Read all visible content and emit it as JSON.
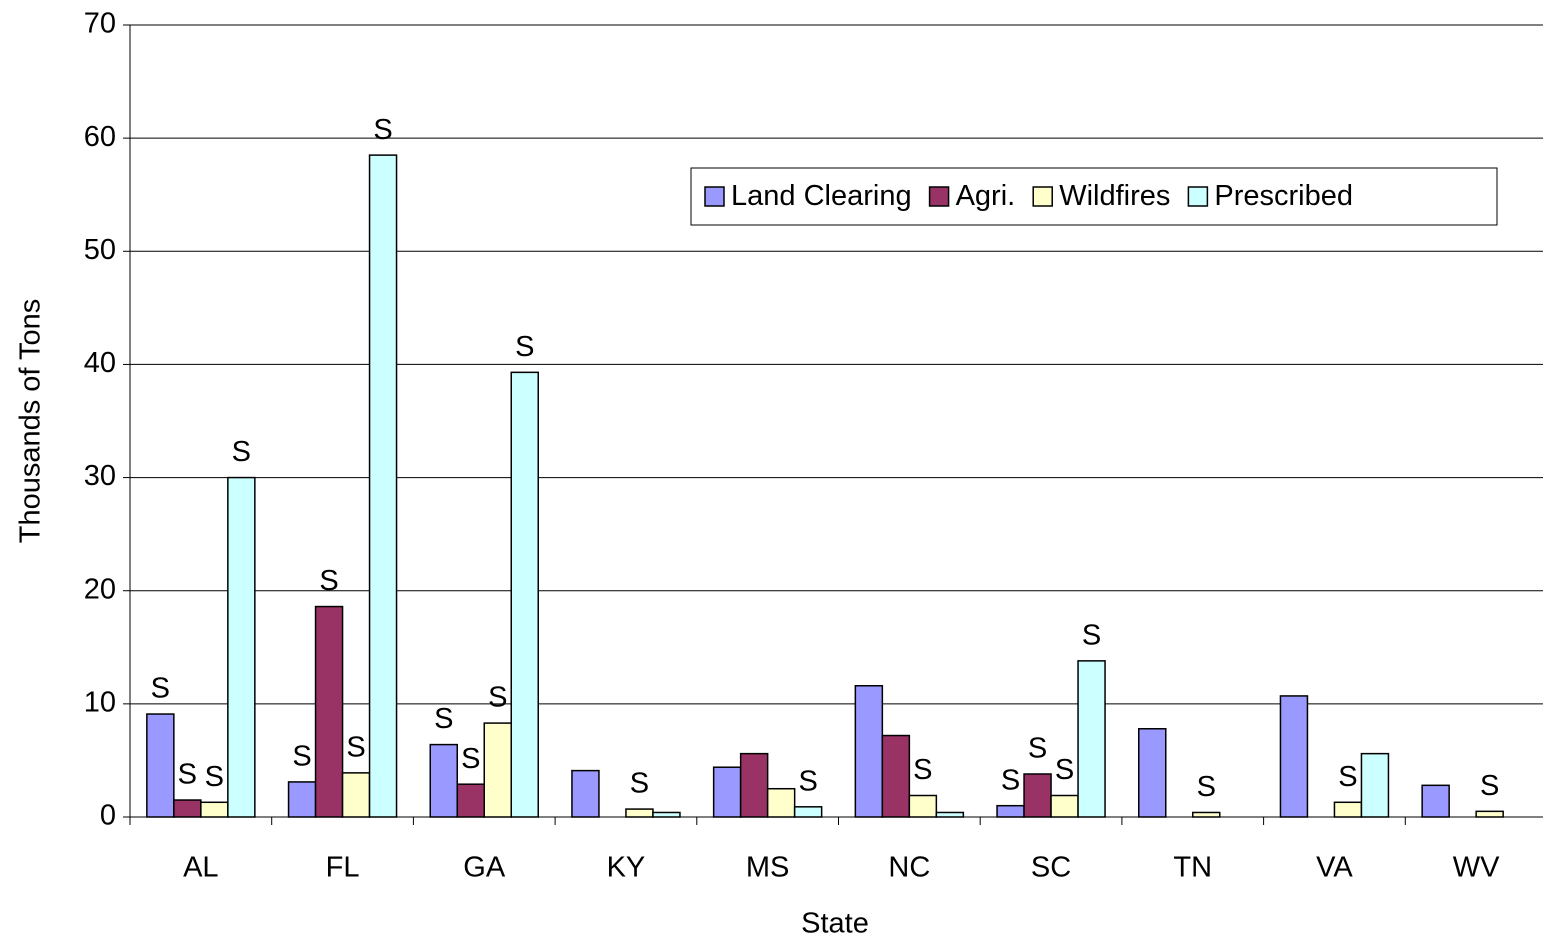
{
  "chart_data": {
    "type": "bar",
    "x_label": "State",
    "y_label": "Thousands of Tons",
    "categories": [
      "AL",
      "FL",
      "GA",
      "KY",
      "MS",
      "NC",
      "SC",
      "TN",
      "VA",
      "WV"
    ],
    "series": [
      {
        "name": "Land Clearing",
        "color": "#9999ff",
        "values": [
          9.1,
          3.1,
          6.4,
          4.1,
          4.4,
          11.6,
          1.0,
          7.8,
          10.7,
          2.8
        ],
        "value_labels": [
          "S",
          "S",
          "S",
          null,
          null,
          null,
          "S",
          null,
          null,
          null
        ]
      },
      {
        "name": "Agri.",
        "color": "#993366",
        "values": [
          1.5,
          18.6,
          2.9,
          0,
          5.6,
          7.2,
          3.8,
          0,
          0,
          0
        ],
        "value_labels": [
          "S",
          "S",
          "S",
          null,
          null,
          null,
          "S",
          null,
          null,
          null
        ]
      },
      {
        "name": "Wildfires",
        "color": "#ffffcc",
        "values": [
          1.3,
          3.9,
          8.3,
          0.7,
          2.5,
          1.9,
          1.9,
          0.4,
          1.3,
          0.5
        ],
        "value_labels": [
          "S",
          "S",
          "S",
          "S",
          null,
          "S",
          "S",
          "S",
          "S",
          "S"
        ]
      },
      {
        "name": "Prescribed",
        "color": "#ccffff",
        "values": [
          30.0,
          58.5,
          39.3,
          0.4,
          0.9,
          0.4,
          13.8,
          0,
          5.6,
          0
        ],
        "value_labels": [
          "S",
          "S",
          "S",
          null,
          "S",
          null,
          "S",
          null,
          null,
          null
        ]
      }
    ],
    "ylim": [
      0,
      70
    ],
    "yticks": [
      0,
      10,
      20,
      30,
      40,
      50,
      60,
      70
    ],
    "grid": true,
    "legend": "upper right"
  }
}
